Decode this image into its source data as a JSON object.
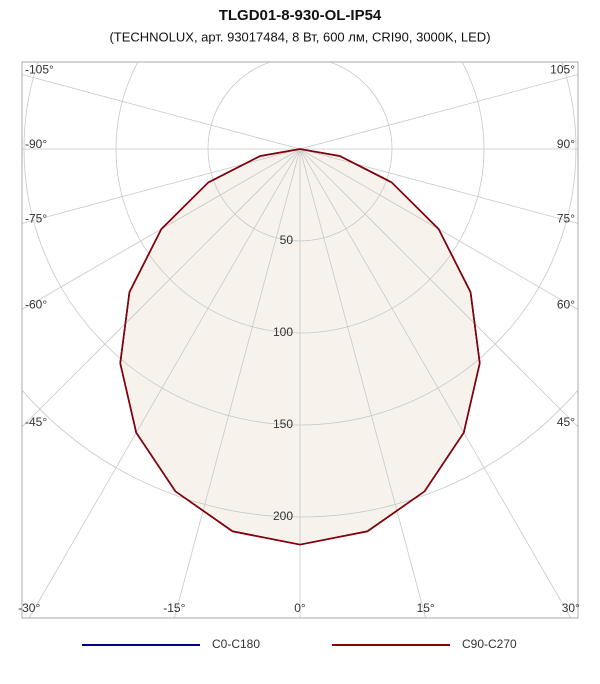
{
  "chart_data": {
    "type": "polar",
    "title": "TLGD01-8-930-OL-IP54",
    "subtitle": "(TECHNOLUX, арт. 93017484, 8 Вт, 600 лм, CRI90, 3000K, LED)",
    "x": [
      -90,
      -80,
      -70,
      -60,
      -50,
      -40,
      -30,
      -20,
      -10,
      0,
      10,
      20,
      30,
      40,
      50,
      60,
      70,
      80,
      90
    ],
    "series": [
      {
        "name": "C0-C180",
        "color": "#000080",
        "values": [
          0,
          22,
          53,
          87,
          121,
          152,
          178,
          198,
          211,
          215,
          211,
          198,
          178,
          152,
          121,
          87,
          53,
          22,
          0
        ]
      },
      {
        "name": "C90-C270",
        "color": "#8b0000",
        "values": [
          0,
          22,
          53,
          87,
          121,
          152,
          178,
          198,
          211,
          215,
          211,
          198,
          178,
          152,
          121,
          87,
          53,
          22,
          0
        ]
      }
    ],
    "rlim": [
      0,
      250
    ],
    "rticks": [
      50,
      100,
      150,
      200
    ],
    "angle_ticks": [
      {
        "value": -105,
        "label": "-105°"
      },
      {
        "value": -90,
        "label": "-90°"
      },
      {
        "value": -75,
        "label": "-75°"
      },
      {
        "value": -60,
        "label": "-60°"
      },
      {
        "value": -45,
        "label": "-45°"
      },
      {
        "value": -30,
        "label": "-30°"
      },
      {
        "value": -15,
        "label": "-15°"
      },
      {
        "value": 0,
        "label": "0°"
      },
      {
        "value": 15,
        "label": "15°"
      },
      {
        "value": 30,
        "label": "30°"
      },
      {
        "value": 45,
        "label": "45°"
      },
      {
        "value": 60,
        "label": "60°"
      },
      {
        "value": 75,
        "label": "75°"
      },
      {
        "value": 90,
        "label": "90°"
      },
      {
        "value": 105,
        "label": "105°"
      }
    ],
    "fill_color": "#f7f3ec"
  }
}
